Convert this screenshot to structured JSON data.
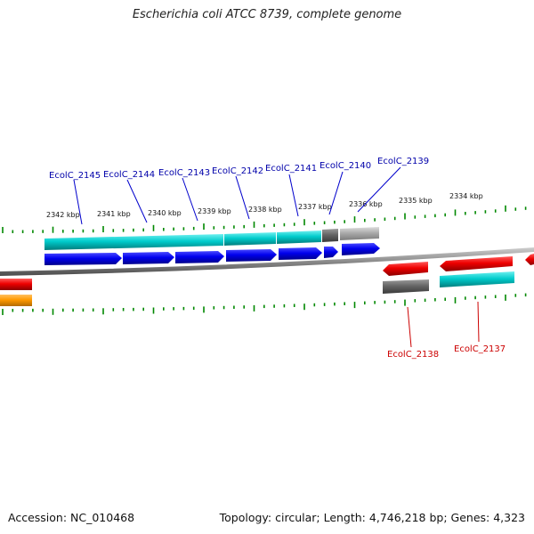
{
  "header": {
    "title": "Escherichia coli ATCC 8739, complete genome"
  },
  "footer": {
    "accession": "Accession: NC_010468",
    "summary": "Topology: circular; Length: 4,746,218 bp; Genes: 4,323"
  },
  "scale": {
    "labels": [
      "2342 kbp",
      "2341 kbp",
      "2340 kbp",
      "2339 kbp",
      "2338 kbp",
      "2337 kbp",
      "2336 kbp",
      "2335 kbp",
      "2334 kbp"
    ]
  },
  "genes_forward": {
    "labels": [
      "EcolC_2145",
      "EcolC_2144",
      "EcolC_2143",
      "EcolC_2142",
      "EcolC_2141",
      "EcolC_2140",
      "EcolC_2139"
    ],
    "color": "#0000aa"
  },
  "genes_reverse": {
    "labels": [
      "EcolC_2138",
      "EcolC_2137"
    ],
    "color": "#cc0000"
  },
  "colors": {
    "cds_forward": "#0000ee",
    "cds_reverse": "#ee0000",
    "gene_feature": "#00cccc",
    "pseudo_gene": "#666666",
    "misc_feature": "#aaaaaa",
    "other_feature": "#ff9900",
    "tick": "#008800",
    "backbone": "#888888"
  }
}
